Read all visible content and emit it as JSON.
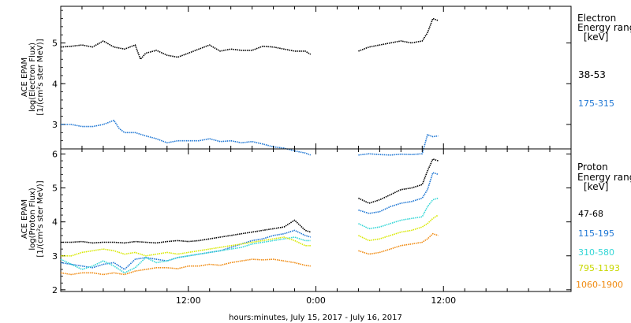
{
  "chart_data": [
    {
      "type": "line",
      "panel": "electron",
      "ylabel_lines": [
        "ACE EPAM",
        "log(Electron Flux)",
        "[1/(cm²s ster MeV)]"
      ],
      "y_ticks": [
        3,
        4,
        5
      ],
      "ylim": [
        2.4,
        5.9
      ],
      "legend_title": [
        "Electron",
        "Energy range",
        "[keV]"
      ],
      "series": [
        {
          "name": "38-53",
          "color": "#000000",
          "x": [
            0,
            1,
            2,
            3,
            4,
            5,
            6,
            7,
            7.5,
            8,
            9,
            10,
            11,
            12,
            13,
            14,
            15,
            16,
            17,
            18,
            19,
            20,
            21,
            22,
            23,
            23.5,
            28,
            29,
            30,
            31,
            32,
            33,
            34,
            34.5,
            35,
            35.5
          ],
          "values": [
            4.9,
            4.92,
            4.95,
            4.9,
            5.05,
            4.9,
            4.85,
            4.95,
            4.6,
            4.75,
            4.82,
            4.7,
            4.65,
            4.75,
            4.85,
            4.95,
            4.8,
            4.85,
            4.82,
            4.82,
            4.92,
            4.9,
            4.85,
            4.8,
            4.8,
            4.72,
            4.8,
            4.9,
            4.95,
            5.0,
            5.05,
            5.0,
            5.05,
            5.25,
            5.6,
            5.55
          ]
        },
        {
          "name": "175-315",
          "color": "#1f77d4",
          "x": [
            0,
            1,
            2,
            3,
            4,
            5,
            5.5,
            6,
            7,
            8,
            9,
            10,
            11,
            12,
            13,
            14,
            15,
            16,
            17,
            18,
            19,
            20,
            21,
            22,
            23,
            23.5,
            28,
            29,
            30,
            31,
            32,
            33,
            34,
            34.5,
            35,
            35.5
          ],
          "values": [
            3.0,
            3.0,
            2.95,
            2.95,
            3.0,
            3.1,
            2.9,
            2.8,
            2.8,
            2.72,
            2.65,
            2.55,
            2.6,
            2.6,
            2.6,
            2.65,
            2.58,
            2.6,
            2.55,
            2.58,
            2.52,
            2.45,
            2.42,
            2.35,
            2.3,
            2.25,
            2.25,
            2.28,
            2.26,
            2.25,
            2.27,
            2.26,
            2.28,
            2.75,
            2.7,
            2.72
          ]
        }
      ]
    },
    {
      "type": "line",
      "panel": "proton",
      "ylabel_lines": [
        "ACE EPAM",
        "log(Proton Flux)",
        "[1/(cm²s ster MeV)]"
      ],
      "y_ticks": [
        2,
        3,
        4,
        5,
        6
      ],
      "ylim": [
        1.95,
        6.15
      ],
      "legend_title": [
        "Proton",
        "Energy range",
        "[keV]"
      ],
      "series": [
        {
          "name": "47-68",
          "color": "#000000",
          "x": [
            0,
            1,
            2,
            3,
            4,
            5,
            6,
            7,
            8,
            9,
            10,
            11,
            12,
            13,
            14,
            15,
            16,
            17,
            18,
            19,
            20,
            21,
            22,
            23,
            23.5,
            28,
            29,
            30,
            31,
            32,
            33,
            34,
            34.5,
            35,
            35.5
          ],
          "values": [
            3.4,
            3.4,
            3.42,
            3.38,
            3.4,
            3.4,
            3.38,
            3.42,
            3.4,
            3.38,
            3.42,
            3.45,
            3.42,
            3.45,
            3.5,
            3.55,
            3.6,
            3.65,
            3.7,
            3.75,
            3.8,
            3.85,
            4.05,
            3.75,
            3.7,
            4.7,
            4.55,
            4.65,
            4.8,
            4.95,
            5.0,
            5.1,
            5.5,
            5.85,
            5.8
          ]
        },
        {
          "name": "115-195",
          "color": "#1f77d4",
          "x": [
            0,
            1,
            2,
            3,
            4,
            5,
            6,
            7,
            8,
            9,
            10,
            11,
            12,
            13,
            14,
            15,
            16,
            17,
            18,
            19,
            20,
            21,
            22,
            23,
            23.5,
            28,
            29,
            30,
            31,
            32,
            33,
            34,
            34.5,
            35,
            35.5
          ],
          "values": [
            2.8,
            2.75,
            2.7,
            2.65,
            2.75,
            2.8,
            2.6,
            2.9,
            2.95,
            2.9,
            2.85,
            2.95,
            3.0,
            3.05,
            3.1,
            3.15,
            3.25,
            3.35,
            3.45,
            3.5,
            3.6,
            3.65,
            3.75,
            3.6,
            3.55,
            4.35,
            4.25,
            4.3,
            4.45,
            4.55,
            4.6,
            4.7,
            4.95,
            5.45,
            5.4
          ]
        },
        {
          "name": "310-580",
          "color": "#33d6d6",
          "x": [
            0,
            1,
            2,
            3,
            4,
            5,
            6,
            7,
            8,
            9,
            10,
            11,
            12,
            13,
            14,
            15,
            16,
            17,
            18,
            19,
            20,
            21,
            22,
            23,
            23.5,
            28,
            29,
            30,
            31,
            32,
            33,
            34,
            34.5,
            35,
            35.5
          ],
          "values": [
            2.9,
            2.75,
            2.6,
            2.7,
            2.85,
            2.7,
            2.5,
            2.65,
            2.95,
            2.8,
            2.85,
            2.95,
            3.0,
            3.05,
            3.1,
            3.15,
            3.2,
            3.25,
            3.35,
            3.4,
            3.45,
            3.5,
            3.55,
            3.45,
            3.45,
            3.95,
            3.8,
            3.85,
            3.95,
            4.05,
            4.1,
            4.15,
            4.45,
            4.65,
            4.7
          ]
        },
        {
          "name": "795-1193",
          "color": "#d8e800",
          "x": [
            0,
            1,
            2,
            3,
            4,
            5,
            6,
            7,
            8,
            9,
            10,
            11,
            12,
            13,
            14,
            15,
            16,
            17,
            18,
            19,
            20,
            21,
            22,
            23,
            23.5,
            28,
            29,
            30,
            31,
            32,
            33,
            34,
            34.5,
            35,
            35.5
          ],
          "values": [
            3.0,
            3.0,
            3.1,
            3.15,
            3.2,
            3.15,
            3.05,
            3.1,
            3.0,
            3.05,
            3.1,
            3.05,
            3.1,
            3.15,
            3.2,
            3.25,
            3.3,
            3.35,
            3.4,
            3.45,
            3.5,
            3.55,
            3.45,
            3.3,
            3.3,
            3.6,
            3.45,
            3.5,
            3.6,
            3.7,
            3.75,
            3.85,
            3.95,
            4.1,
            4.2
          ]
        },
        {
          "name": "1060-1900",
          "color": "#f08a10",
          "x": [
            0,
            1,
            2,
            3,
            4,
            5,
            6,
            7,
            8,
            9,
            10,
            11,
            12,
            13,
            14,
            15,
            16,
            17,
            18,
            19,
            20,
            21,
            22,
            23,
            23.5,
            28,
            29,
            30,
            31,
            32,
            33,
            34,
            34.5,
            35,
            35.5
          ],
          "values": [
            2.5,
            2.45,
            2.5,
            2.5,
            2.45,
            2.5,
            2.45,
            2.55,
            2.6,
            2.65,
            2.65,
            2.62,
            2.7,
            2.7,
            2.75,
            2.72,
            2.8,
            2.85,
            2.9,
            2.88,
            2.9,
            2.85,
            2.8,
            2.72,
            2.7,
            3.15,
            3.05,
            3.1,
            3.2,
            3.3,
            3.35,
            3.4,
            3.5,
            3.65,
            3.6
          ]
        }
      ]
    }
  ],
  "x_axis": {
    "label": "hours:minutes, July 15, 2017 - July 16, 2017",
    "tick_labels": [
      "12:00",
      "0:00",
      "12:00"
    ],
    "tick_hours": [
      12,
      24,
      36
    ],
    "xlim": [
      0,
      48
    ]
  }
}
